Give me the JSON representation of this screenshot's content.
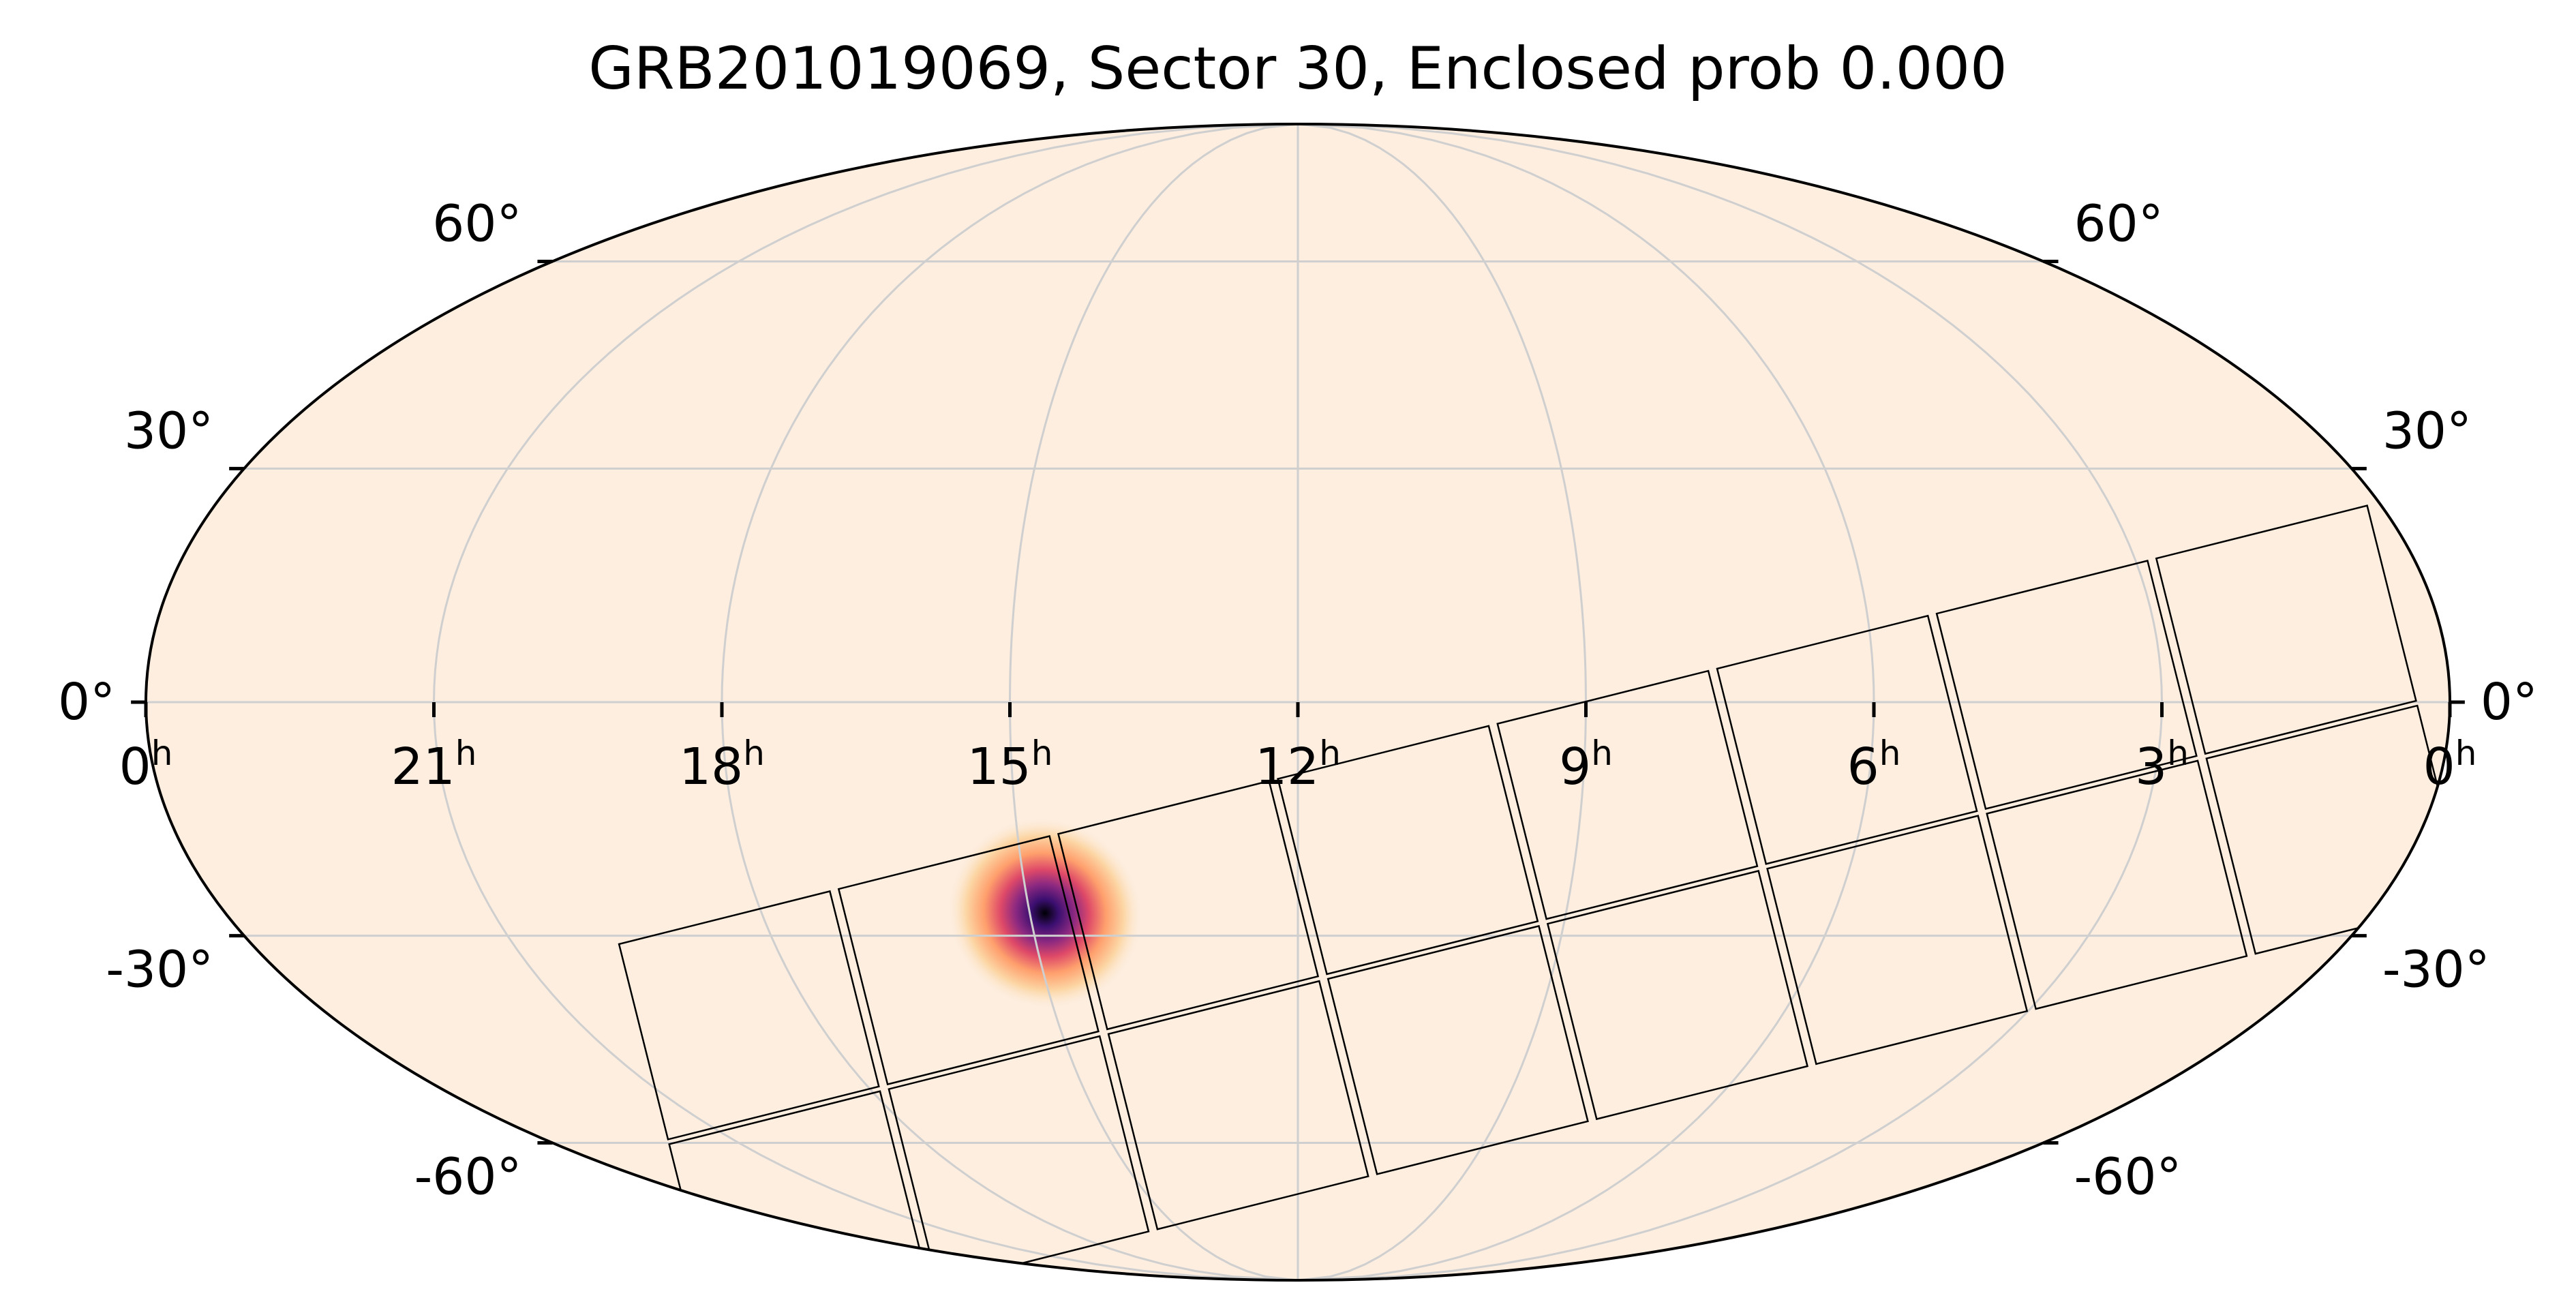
{
  "chart_data": {
    "type": "heatmap",
    "title": "GRB201019069, Sector 30, Enclosed prob 0.000",
    "projection": "mollweide",
    "colormap": "inferno_r",
    "background_color": "#fdeee0",
    "ra_hours": [
      24,
      21,
      18,
      15,
      12,
      9,
      6,
      3,
      0
    ],
    "ra_tick_labels": [
      "0",
      "21",
      "18",
      "15",
      "12",
      "9",
      "6",
      "3",
      "0"
    ],
    "ra_unit_sup": "h",
    "dec_degrees": [
      60,
      30,
      0,
      -30,
      -60
    ],
    "dec_tick_labels": [
      "60°",
      "30°",
      "0°",
      "-30°",
      "-60°"
    ],
    "grid": true,
    "probability_peak": {
      "ra_hours": 14.83,
      "dec_degrees": -27,
      "sigma_ra_deg": 6.5,
      "sigma_dec_deg": 11,
      "rotation_deg": 35
    },
    "tess_sector": {
      "number": 30,
      "cameras": 4,
      "ccds_per_camera": 4,
      "center_line": [
        {
          "ra_hours": 0.3,
          "dec_degrees": 0
        },
        {
          "ra_hours": 22.2,
          "dec_degrees": -60
        }
      ]
    }
  }
}
